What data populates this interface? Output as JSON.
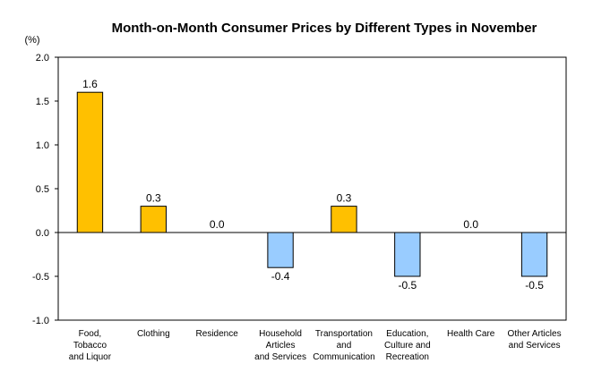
{
  "chart_data": {
    "type": "bar",
    "title": "Month-on-Month Consumer Prices by Different Types in November",
    "unit_label": "(%)",
    "categories": [
      "Food, Tobacco and Liquor",
      "Clothing",
      "Residence",
      "Household Articles and Services",
      "Transportation and Communication",
      "Education, Culture and Recreation",
      "Health Care",
      "Other Articles and Services"
    ],
    "category_lines": [
      [
        "Food,",
        "Tobacco",
        "and Liquor"
      ],
      [
        "Clothing"
      ],
      [
        "Residence"
      ],
      [
        "Household",
        "Articles",
        "and Services"
      ],
      [
        "Transportation",
        "and",
        "Communication"
      ],
      [
        "Education,",
        "Culture and",
        "Recreation"
      ],
      [
        "Health Care"
      ],
      [
        "Other Articles",
        "and Services"
      ]
    ],
    "values": [
      1.6,
      0.3,
      0.0,
      -0.4,
      0.3,
      -0.5,
      0.0,
      -0.5
    ],
    "data_labels": [
      "1.6",
      "0.3",
      "0.0",
      "-0.4",
      "0.3",
      "-0.5",
      "0.0",
      "-0.5"
    ],
    "ylim": [
      -1.0,
      2.0
    ],
    "yticks": [
      2.0,
      1.5,
      1.0,
      0.5,
      0.0,
      -0.5,
      -1.0
    ],
    "ytick_labels": [
      "2.0",
      "1.5",
      "1.0",
      "0.5",
      "0.0",
      "-0.5",
      "-1.0"
    ],
    "grid": false,
    "legend": "none",
    "colors": {
      "positive": "#ffc000",
      "negative": "#99ccff",
      "outline": "#000000",
      "axis": "#000000"
    }
  }
}
